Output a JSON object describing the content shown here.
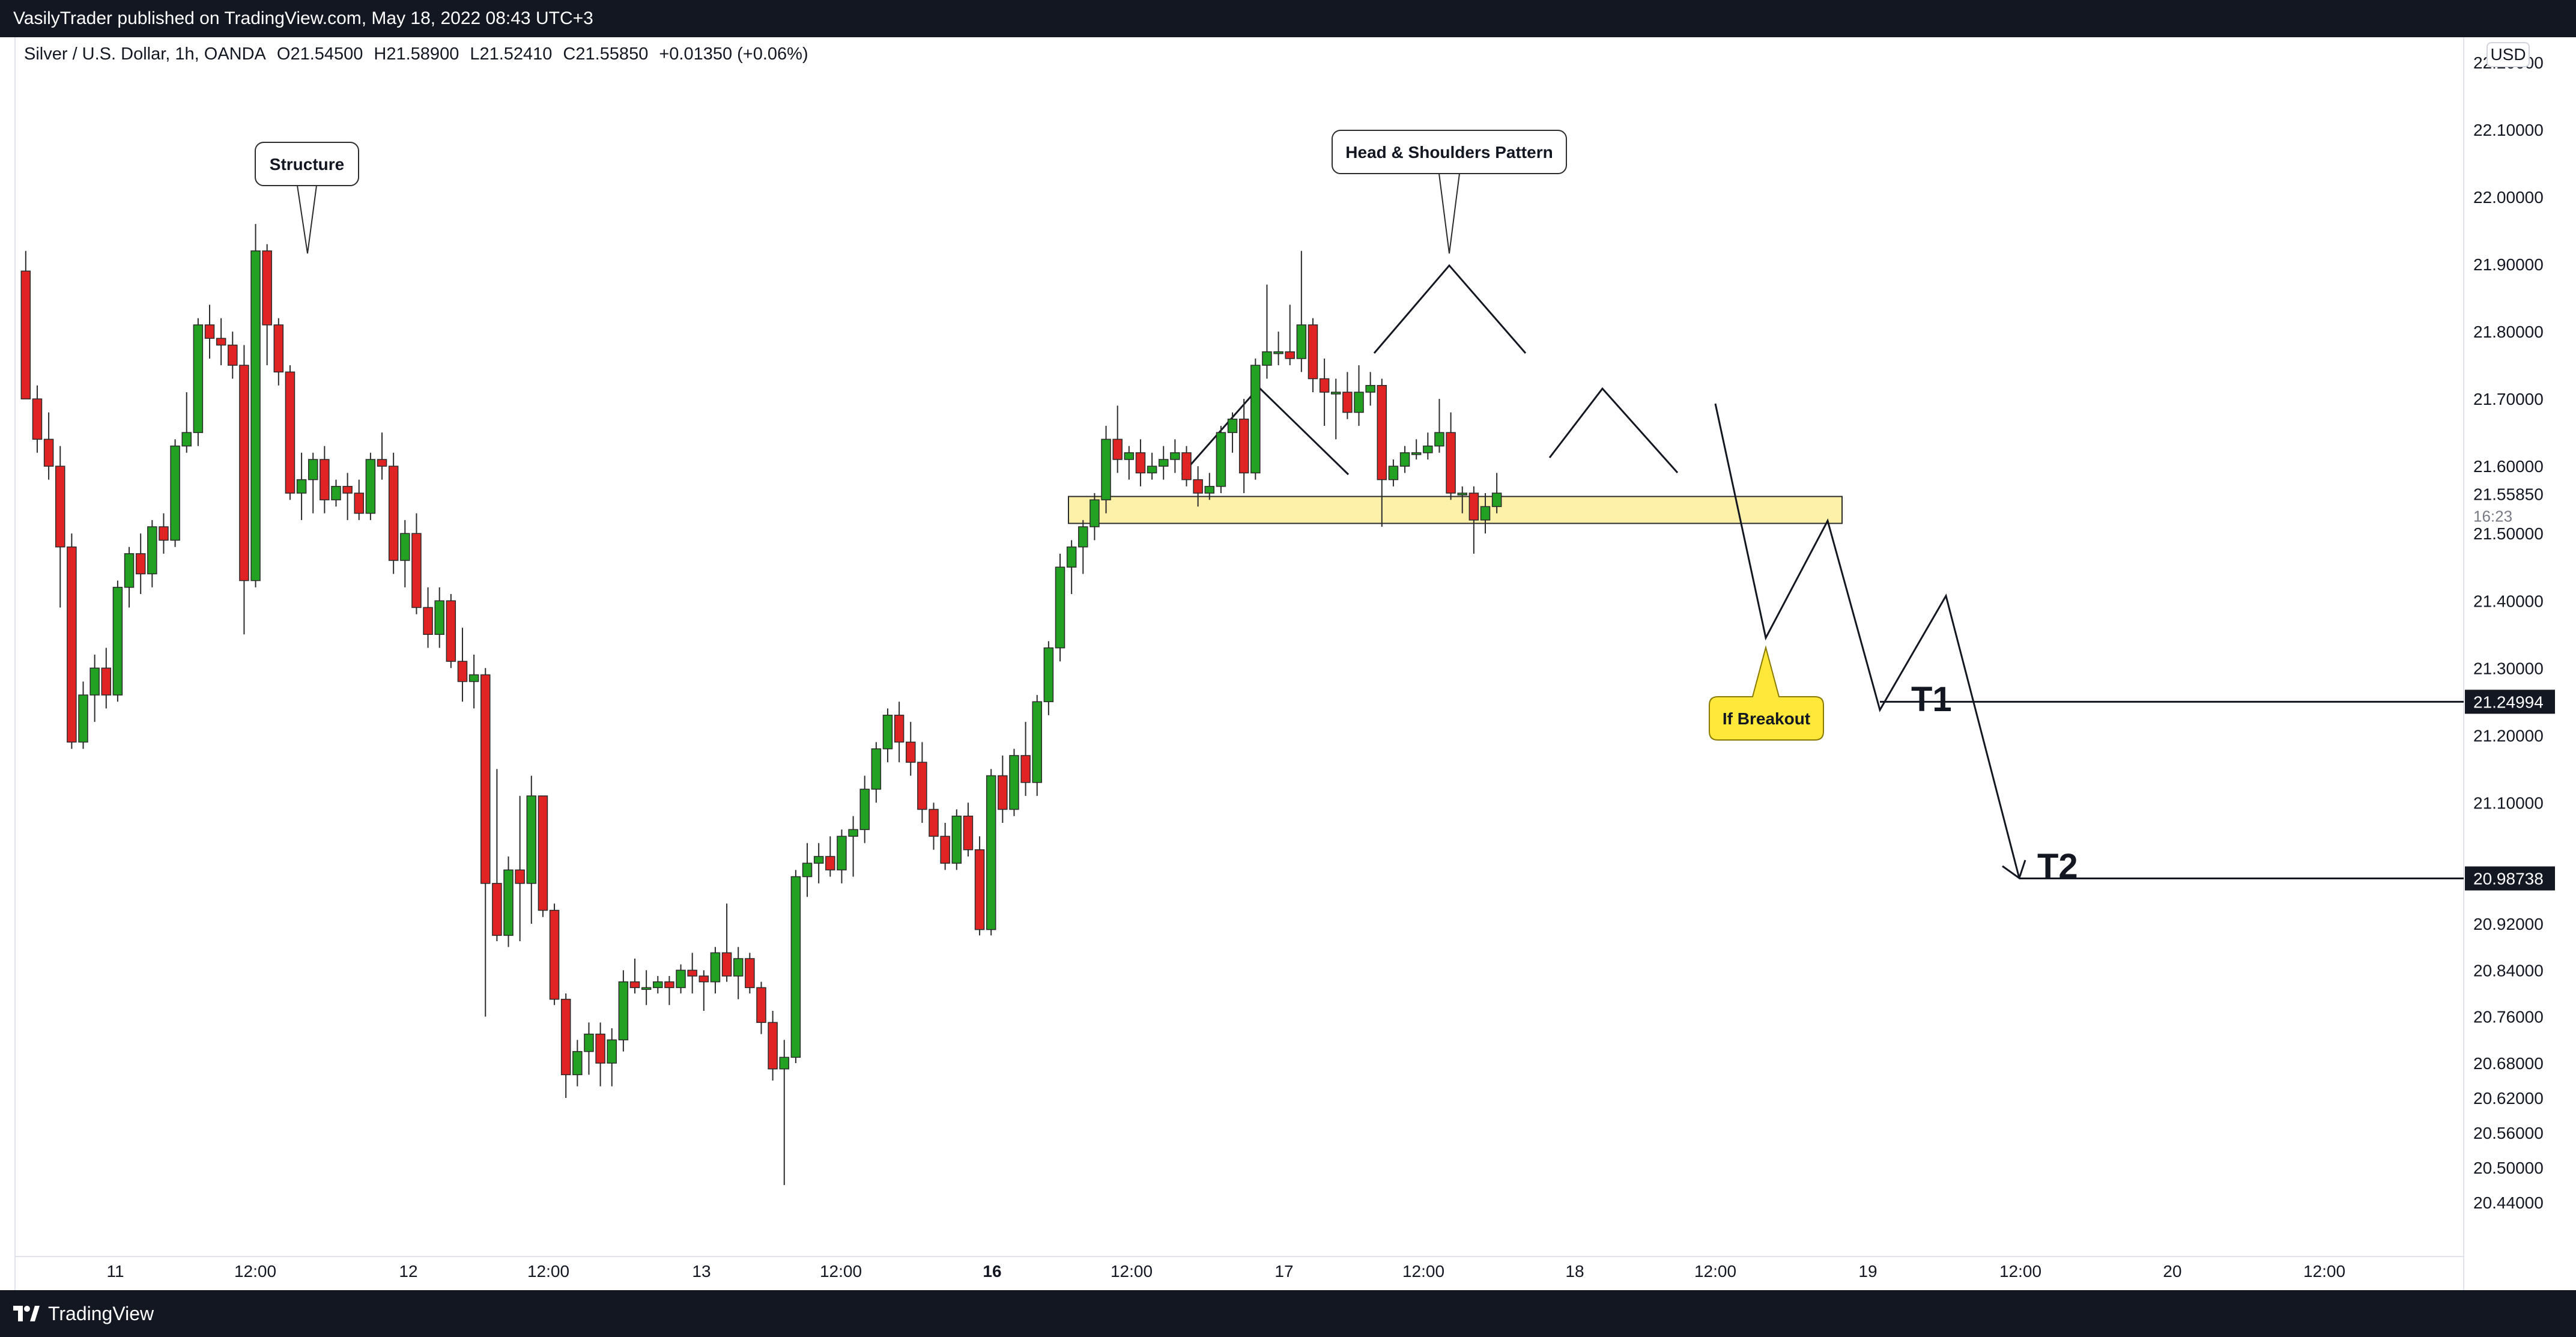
{
  "header": {
    "published_text": "VasilyTrader published on TradingView.com, May 18, 2022 08:43 UTC+3"
  },
  "footer": {
    "brand": "TradingView"
  },
  "symbol_bar": {
    "name": "Silver / U.S. Dollar, 1h, OANDA",
    "open": "O21.54500",
    "high": "H21.58900",
    "low": "L21.52410",
    "close": "C21.55850",
    "change": "+0.01350 (+0.06%)"
  },
  "currency": "USD",
  "colors": {
    "up": "#22a122",
    "down": "#e02424",
    "zone_fill": "#fdf0a8",
    "callout_yellow": "#ffe83a",
    "price_tag_bg": "#131722"
  },
  "chart_data": {
    "type": "candlestick",
    "symbol": "Silver / U.S. Dollar",
    "interval": "1h",
    "ylim": [
      20.4,
      22.3
    ],
    "y_ticks": [
      "22.20000",
      "22.10000",
      "22.00000",
      "21.90000",
      "21.80000",
      "21.70000",
      "21.60000",
      "21.50000",
      "21.40000",
      "21.30000",
      "21.20000",
      "21.10000",
      "20.92000",
      "20.84000",
      "20.76000",
      "20.68000",
      "20.62000",
      "20.56000",
      "20.50000",
      "20.44000"
    ],
    "x_ticks": [
      "11",
      "12:00",
      "12",
      "12:00",
      "13",
      "12:00",
      "16",
      "12:00",
      "17",
      "12:00",
      "18",
      "12:00",
      "19",
      "12:00",
      "20",
      "12:00"
    ],
    "current_price": {
      "label": "21.55850",
      "countdown": "16:23",
      "value": 21.5585
    },
    "price_labels": [
      {
        "label": "21.24994",
        "value": 21.24994
      },
      {
        "label": "20.98738",
        "value": 20.98738
      }
    ],
    "candles": [
      {
        "o": 21.89,
        "h": 21.92,
        "l": 21.7,
        "c": 21.7
      },
      {
        "o": 21.7,
        "h": 21.72,
        "l": 21.62,
        "c": 21.64
      },
      {
        "o": 21.64,
        "h": 21.68,
        "l": 21.58,
        "c": 21.6
      },
      {
        "o": 21.6,
        "h": 21.63,
        "l": 21.39,
        "c": 21.48
      },
      {
        "o": 21.48,
        "h": 21.5,
        "l": 21.18,
        "c": 21.19
      },
      {
        "o": 21.19,
        "h": 21.28,
        "l": 21.18,
        "c": 21.26
      },
      {
        "o": 21.26,
        "h": 21.32,
        "l": 21.22,
        "c": 21.3
      },
      {
        "o": 21.3,
        "h": 21.33,
        "l": 21.24,
        "c": 21.26
      },
      {
        "o": 21.26,
        "h": 21.43,
        "l": 21.25,
        "c": 21.42
      },
      {
        "o": 21.42,
        "h": 21.48,
        "l": 21.39,
        "c": 21.47
      },
      {
        "o": 21.47,
        "h": 21.5,
        "l": 21.41,
        "c": 21.44
      },
      {
        "o": 21.44,
        "h": 21.52,
        "l": 21.42,
        "c": 21.51
      },
      {
        "o": 21.51,
        "h": 21.53,
        "l": 21.47,
        "c": 21.49
      },
      {
        "o": 21.49,
        "h": 21.64,
        "l": 21.48,
        "c": 21.63
      },
      {
        "o": 21.63,
        "h": 21.71,
        "l": 21.62,
        "c": 21.65
      },
      {
        "o": 21.65,
        "h": 21.82,
        "l": 21.63,
        "c": 21.81
      },
      {
        "o": 21.81,
        "h": 21.84,
        "l": 21.76,
        "c": 21.79
      },
      {
        "o": 21.79,
        "h": 21.82,
        "l": 21.75,
        "c": 21.78
      },
      {
        "o": 21.78,
        "h": 21.8,
        "l": 21.73,
        "c": 21.75
      },
      {
        "o": 21.75,
        "h": 21.78,
        "l": 21.35,
        "c": 21.43
      },
      {
        "o": 21.43,
        "h": 21.96,
        "l": 21.42,
        "c": 21.92
      },
      {
        "o": 21.92,
        "h": 21.93,
        "l": 21.75,
        "c": 21.81
      },
      {
        "o": 21.81,
        "h": 21.82,
        "l": 21.72,
        "c": 21.74
      },
      {
        "o": 21.74,
        "h": 21.75,
        "l": 21.55,
        "c": 21.56
      },
      {
        "o": 21.56,
        "h": 21.62,
        "l": 21.52,
        "c": 21.58
      },
      {
        "o": 21.58,
        "h": 21.62,
        "l": 21.53,
        "c": 21.61
      },
      {
        "o": 21.61,
        "h": 21.63,
        "l": 21.53,
        "c": 21.55
      },
      {
        "o": 21.55,
        "h": 21.58,
        "l": 21.54,
        "c": 21.57
      },
      {
        "o": 21.57,
        "h": 21.59,
        "l": 21.52,
        "c": 21.56
      },
      {
        "o": 21.56,
        "h": 21.58,
        "l": 21.52,
        "c": 21.53
      },
      {
        "o": 21.53,
        "h": 21.62,
        "l": 21.52,
        "c": 21.61
      },
      {
        "o": 21.61,
        "h": 21.65,
        "l": 21.58,
        "c": 21.6
      },
      {
        "o": 21.6,
        "h": 21.62,
        "l": 21.44,
        "c": 21.46
      },
      {
        "o": 21.46,
        "h": 21.52,
        "l": 21.42,
        "c": 21.5
      },
      {
        "o": 21.5,
        "h": 21.53,
        "l": 21.38,
        "c": 21.39
      },
      {
        "o": 21.39,
        "h": 21.42,
        "l": 21.33,
        "c": 21.35
      },
      {
        "o": 21.35,
        "h": 21.42,
        "l": 21.33,
        "c": 21.4
      },
      {
        "o": 21.4,
        "h": 21.41,
        "l": 21.3,
        "c": 21.31
      },
      {
        "o": 21.31,
        "h": 21.36,
        "l": 21.25,
        "c": 21.28
      },
      {
        "o": 21.28,
        "h": 21.32,
        "l": 21.24,
        "c": 21.29
      },
      {
        "o": 21.29,
        "h": 21.3,
        "l": 20.76,
        "c": 20.98
      },
      {
        "o": 20.98,
        "h": 21.15,
        "l": 20.89,
        "c": 20.9
      },
      {
        "o": 20.9,
        "h": 21.02,
        "l": 20.88,
        "c": 21.0
      },
      {
        "o": 21.0,
        "h": 21.11,
        "l": 20.89,
        "c": 20.98
      },
      {
        "o": 20.98,
        "h": 21.14,
        "l": 20.92,
        "c": 21.11
      },
      {
        "o": 21.11,
        "h": 21.11,
        "l": 20.93,
        "c": 20.94
      },
      {
        "o": 20.94,
        "h": 20.95,
        "l": 20.78,
        "c": 20.79
      },
      {
        "o": 20.79,
        "h": 20.8,
        "l": 20.62,
        "c": 20.66
      },
      {
        "o": 20.66,
        "h": 20.72,
        "l": 20.64,
        "c": 20.7
      },
      {
        "o": 20.7,
        "h": 20.75,
        "l": 20.66,
        "c": 20.73
      },
      {
        "o": 20.73,
        "h": 20.75,
        "l": 20.64,
        "c": 20.68
      },
      {
        "o": 20.68,
        "h": 20.74,
        "l": 20.64,
        "c": 20.72
      },
      {
        "o": 20.72,
        "h": 20.84,
        "l": 20.7,
        "c": 20.82
      },
      {
        "o": 20.82,
        "h": 20.86,
        "l": 20.8,
        "c": 20.81
      },
      {
        "o": 20.81,
        "h": 20.84,
        "l": 20.78,
        "c": 20.81
      },
      {
        "o": 20.81,
        "h": 20.83,
        "l": 20.8,
        "c": 20.82
      },
      {
        "o": 20.82,
        "h": 20.83,
        "l": 20.78,
        "c": 20.81
      },
      {
        "o": 20.81,
        "h": 20.85,
        "l": 20.8,
        "c": 20.84
      },
      {
        "o": 20.84,
        "h": 20.87,
        "l": 20.8,
        "c": 20.83
      },
      {
        "o": 20.83,
        "h": 20.84,
        "l": 20.77,
        "c": 20.82
      },
      {
        "o": 20.82,
        "h": 20.88,
        "l": 20.8,
        "c": 20.87
      },
      {
        "o": 20.87,
        "h": 20.95,
        "l": 20.82,
        "c": 20.83
      },
      {
        "o": 20.83,
        "h": 20.88,
        "l": 20.79,
        "c": 20.86
      },
      {
        "o": 20.86,
        "h": 20.87,
        "l": 20.8,
        "c": 20.81
      },
      {
        "o": 20.81,
        "h": 20.82,
        "l": 20.73,
        "c": 20.75
      },
      {
        "o": 20.75,
        "h": 20.77,
        "l": 20.65,
        "c": 20.67
      },
      {
        "o": 20.67,
        "h": 20.72,
        "l": 20.47,
        "c": 20.69
      },
      {
        "o": 20.69,
        "h": 21.0,
        "l": 20.68,
        "c": 20.99
      },
      {
        "o": 20.99,
        "h": 21.04,
        "l": 20.96,
        "c": 21.01
      },
      {
        "o": 21.01,
        "h": 21.04,
        "l": 20.98,
        "c": 21.02
      },
      {
        "o": 21.02,
        "h": 21.05,
        "l": 20.99,
        "c": 21.0
      },
      {
        "o": 21.0,
        "h": 21.06,
        "l": 20.98,
        "c": 21.05
      },
      {
        "o": 21.05,
        "h": 21.08,
        "l": 20.99,
        "c": 21.06
      },
      {
        "o": 21.06,
        "h": 21.14,
        "l": 21.04,
        "c": 21.12
      },
      {
        "o": 21.12,
        "h": 21.19,
        "l": 21.1,
        "c": 21.18
      },
      {
        "o": 21.18,
        "h": 21.24,
        "l": 21.16,
        "c": 21.23
      },
      {
        "o": 21.23,
        "h": 21.25,
        "l": 21.16,
        "c": 21.19
      },
      {
        "o": 21.19,
        "h": 21.22,
        "l": 21.14,
        "c": 21.16
      },
      {
        "o": 21.16,
        "h": 21.19,
        "l": 21.07,
        "c": 21.09
      },
      {
        "o": 21.09,
        "h": 21.1,
        "l": 21.03,
        "c": 21.05
      },
      {
        "o": 21.05,
        "h": 21.07,
        "l": 21.0,
        "c": 21.01
      },
      {
        "o": 21.01,
        "h": 21.09,
        "l": 21.0,
        "c": 21.08
      },
      {
        "o": 21.08,
        "h": 21.1,
        "l": 21.02,
        "c": 21.03
      },
      {
        "o": 21.03,
        "h": 21.05,
        "l": 20.9,
        "c": 20.91
      },
      {
        "o": 20.91,
        "h": 21.15,
        "l": 20.9,
        "c": 21.14
      },
      {
        "o": 21.14,
        "h": 21.17,
        "l": 21.07,
        "c": 21.09
      },
      {
        "o": 21.09,
        "h": 21.18,
        "l": 21.08,
        "c": 21.17
      },
      {
        "o": 21.17,
        "h": 21.22,
        "l": 21.11,
        "c": 21.13
      },
      {
        "o": 21.13,
        "h": 21.26,
        "l": 21.11,
        "c": 21.25
      },
      {
        "o": 21.25,
        "h": 21.34,
        "l": 21.23,
        "c": 21.33
      },
      {
        "o": 21.33,
        "h": 21.47,
        "l": 21.31,
        "c": 21.45
      },
      {
        "o": 21.45,
        "h": 21.49,
        "l": 21.41,
        "c": 21.48
      },
      {
        "o": 21.48,
        "h": 21.52,
        "l": 21.44,
        "c": 21.51
      },
      {
        "o": 21.51,
        "h": 21.56,
        "l": 21.49,
        "c": 21.55
      },
      {
        "o": 21.55,
        "h": 21.66,
        "l": 21.53,
        "c": 21.64
      },
      {
        "o": 21.64,
        "h": 21.69,
        "l": 21.59,
        "c": 21.61
      },
      {
        "o": 21.61,
        "h": 21.63,
        "l": 21.58,
        "c": 21.62
      },
      {
        "o": 21.62,
        "h": 21.64,
        "l": 21.57,
        "c": 21.59
      },
      {
        "o": 21.59,
        "h": 21.62,
        "l": 21.58,
        "c": 21.6
      },
      {
        "o": 21.6,
        "h": 21.63,
        "l": 21.58,
        "c": 21.61
      },
      {
        "o": 21.61,
        "h": 21.64,
        "l": 21.59,
        "c": 21.62
      },
      {
        "o": 21.62,
        "h": 21.63,
        "l": 21.57,
        "c": 21.58
      },
      {
        "o": 21.58,
        "h": 21.6,
        "l": 21.54,
        "c": 21.56
      },
      {
        "o": 21.56,
        "h": 21.59,
        "l": 21.55,
        "c": 21.57
      },
      {
        "o": 21.57,
        "h": 21.66,
        "l": 21.56,
        "c": 21.65
      },
      {
        "o": 21.65,
        "h": 21.68,
        "l": 21.62,
        "c": 21.67
      },
      {
        "o": 21.67,
        "h": 21.7,
        "l": 21.56,
        "c": 21.59
      },
      {
        "o": 21.59,
        "h": 21.76,
        "l": 21.58,
        "c": 21.75
      },
      {
        "o": 21.75,
        "h": 21.87,
        "l": 21.73,
        "c": 21.77
      },
      {
        "o": 21.77,
        "h": 21.8,
        "l": 21.75,
        "c": 21.77
      },
      {
        "o": 21.77,
        "h": 21.84,
        "l": 21.75,
        "c": 21.76
      },
      {
        "o": 21.76,
        "h": 21.92,
        "l": 21.74,
        "c": 21.81
      },
      {
        "o": 21.81,
        "h": 21.82,
        "l": 21.71,
        "c": 21.73
      },
      {
        "o": 21.73,
        "h": 21.76,
        "l": 21.66,
        "c": 21.71
      },
      {
        "o": 21.71,
        "h": 21.73,
        "l": 21.64,
        "c": 21.71
      },
      {
        "o": 21.71,
        "h": 21.74,
        "l": 21.67,
        "c": 21.68
      },
      {
        "o": 21.68,
        "h": 21.75,
        "l": 21.66,
        "c": 21.71
      },
      {
        "o": 21.71,
        "h": 21.74,
        "l": 21.69,
        "c": 21.72
      },
      {
        "o": 21.72,
        "h": 21.73,
        "l": 21.51,
        "c": 21.58
      },
      {
        "o": 21.58,
        "h": 21.61,
        "l": 21.57,
        "c": 21.6
      },
      {
        "o": 21.6,
        "h": 21.63,
        "l": 21.59,
        "c": 21.62
      },
      {
        "o": 21.62,
        "h": 21.64,
        "l": 21.61,
        "c": 21.62
      },
      {
        "o": 21.62,
        "h": 21.65,
        "l": 21.61,
        "c": 21.63
      },
      {
        "o": 21.63,
        "h": 21.7,
        "l": 21.62,
        "c": 21.65
      },
      {
        "o": 21.65,
        "h": 21.68,
        "l": 21.55,
        "c": 21.56
      },
      {
        "o": 21.56,
        "h": 21.57,
        "l": 21.53,
        "c": 21.56
      },
      {
        "o": 21.56,
        "h": 21.57,
        "l": 21.47,
        "c": 21.52
      },
      {
        "o": 21.52,
        "h": 21.56,
        "l": 21.5,
        "c": 21.54
      },
      {
        "o": 21.54,
        "h": 21.59,
        "l": 21.53,
        "c": 21.56
      }
    ],
    "annotations": [
      {
        "label": "Structure"
      },
      {
        "label": "Head & Shoulders Pattern"
      },
      {
        "label": "If Breakout"
      },
      {
        "label": "T1"
      },
      {
        "label": "T2"
      }
    ],
    "support_zone": {
      "top": 21.555,
      "bottom": 21.515
    }
  }
}
